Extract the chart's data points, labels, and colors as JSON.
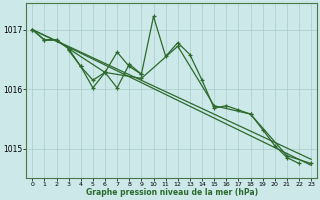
{
  "bg_color": "#cce8e8",
  "grid_color": "#aacccc",
  "line_color": "#2d6a2d",
  "xlabel": "Graphe pression niveau de la mer (hPa)",
  "ylim": [
    1014.5,
    1017.45
  ],
  "xlim": [
    -0.5,
    23.5
  ],
  "yticks": [
    1015,
    1016,
    1017
  ],
  "xticks": [
    0,
    1,
    2,
    3,
    4,
    5,
    6,
    7,
    8,
    9,
    10,
    11,
    12,
    13,
    14,
    15,
    16,
    17,
    18,
    19,
    20,
    21,
    22,
    23
  ],
  "line1": {
    "x": [
      0,
      23
    ],
    "y": [
      1017.0,
      1014.72
    ]
  },
  "line2": {
    "x": [
      0,
      23
    ],
    "y": [
      1017.0,
      1014.82
    ]
  },
  "line3": {
    "x": [
      0,
      1,
      2,
      3,
      4,
      5,
      6,
      7,
      8,
      9,
      10,
      11,
      12,
      13,
      14,
      15,
      16,
      17,
      18,
      19,
      20,
      21,
      22,
      23
    ],
    "y": [
      1017.0,
      1016.82,
      1016.82,
      1016.68,
      1016.38,
      1016.02,
      1016.28,
      1016.02,
      1016.42,
      1016.25,
      1017.22,
      1016.55,
      1016.78,
      1016.58,
      1016.15,
      1015.68,
      1015.72,
      1015.65,
      1015.58,
      1015.32,
      1015.05,
      1014.85,
      1014.75,
      null
    ]
  },
  "line4": {
    "x": [
      3,
      4,
      5,
      6,
      7,
      8,
      9
    ],
    "y": [
      1016.65,
      1016.38,
      1016.15,
      1016.28,
      1016.62,
      1016.38,
      1016.25
    ]
  },
  "line5": {
    "x": [
      0,
      1,
      2,
      3,
      6,
      9,
      12,
      15,
      18,
      21,
      23
    ],
    "y": [
      1017.0,
      1016.83,
      1016.83,
      1016.68,
      1016.28,
      1016.18,
      1016.72,
      1015.72,
      1015.58,
      1014.88,
      1014.75
    ]
  }
}
